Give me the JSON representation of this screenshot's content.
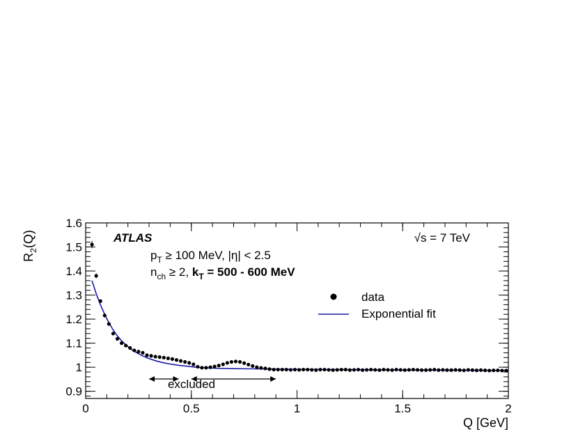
{
  "chart_data": {
    "type": "scatter",
    "xlabel": "Q [GeV]",
    "ylabel": "R",
    "ylabel_sub": "2",
    "ylabel_tail": "(Q)",
    "xlim": [
      0,
      2
    ],
    "ylim": [
      0.87,
      1.6
    ],
    "xticks": [
      0,
      0.5,
      1,
      1.5,
      2
    ],
    "xtick_labels": [
      "0",
      "0.5",
      "1",
      "1.5",
      "2"
    ],
    "yticks": [
      0.9,
      1,
      1.1,
      1.2,
      1.3,
      1.4,
      1.5,
      1.6
    ],
    "ytick_labels": [
      "0.9",
      "1",
      "1.1",
      "1.2",
      "1.3",
      "1.4",
      "1.5",
      "1.6"
    ],
    "grid": false,
    "legend_position": "right",
    "annotations": {
      "experiment": "ATLAS",
      "energy": "√s = 7 TeV",
      "line1_a": "p",
      "line1_sub": "T",
      "line1_b": " ≥ 100 MeV, |η| < 2.5",
      "line2_a": "n",
      "line2_sub": "ch",
      "line2_b": " ≥ 2, ",
      "line2_bold_a": "k",
      "line2_bold_sub": "T",
      "line2_bold_b": "  = 500 - 600 MeV",
      "excluded_label": "excluded",
      "excluded_range": [
        0.3,
        0.9
      ]
    },
    "series": [
      {
        "name": "data",
        "style": "markers",
        "color": "#000000",
        "x": [
          0.03,
          0.05,
          0.07,
          0.09,
          0.11,
          0.13,
          0.15,
          0.17,
          0.19,
          0.21,
          0.23,
          0.25,
          0.27,
          0.29,
          0.31,
          0.33,
          0.35,
          0.37,
          0.39,
          0.41,
          0.43,
          0.45,
          0.47,
          0.49,
          0.51,
          0.53,
          0.55,
          0.57,
          0.59,
          0.61,
          0.63,
          0.65,
          0.67,
          0.69,
          0.71,
          0.73,
          0.75,
          0.77,
          0.79,
          0.81,
          0.83,
          0.85,
          0.87,
          0.89,
          0.91,
          0.93,
          0.95,
          0.97,
          0.99,
          1.01,
          1.03,
          1.05,
          1.07,
          1.09,
          1.11,
          1.13,
          1.15,
          1.17,
          1.19,
          1.21,
          1.23,
          1.25,
          1.27,
          1.29,
          1.31,
          1.33,
          1.35,
          1.37,
          1.39,
          1.41,
          1.43,
          1.45,
          1.47,
          1.49,
          1.51,
          1.53,
          1.55,
          1.57,
          1.59,
          1.61,
          1.63,
          1.65,
          1.67,
          1.69,
          1.71,
          1.73,
          1.75,
          1.77,
          1.79,
          1.81,
          1.83,
          1.85,
          1.87,
          1.89,
          1.91,
          1.93,
          1.95,
          1.97,
          1.99
        ],
        "y": [
          1.51,
          1.38,
          1.275,
          1.215,
          1.18,
          1.14,
          1.118,
          1.1,
          1.09,
          1.08,
          1.07,
          1.065,
          1.06,
          1.05,
          1.047,
          1.044,
          1.042,
          1.04,
          1.037,
          1.034,
          1.03,
          1.026,
          1.022,
          1.018,
          1.012,
          1.002,
          0.998,
          0.998,
          1.0,
          1.003,
          1.007,
          1.012,
          1.018,
          1.022,
          1.024,
          1.022,
          1.017,
          1.011,
          1.005,
          1.0,
          0.997,
          0.995,
          0.992,
          0.99,
          0.99,
          0.99,
          0.99,
          0.989,
          0.99,
          0.989,
          0.99,
          0.99,
          0.989,
          0.988,
          0.99,
          0.99,
          0.989,
          0.988,
          0.989,
          0.99,
          0.99,
          0.988,
          0.989,
          0.99,
          0.988,
          0.989,
          0.99,
          0.989,
          0.988,
          0.99,
          0.989,
          0.988,
          0.99,
          0.989,
          0.988,
          0.989,
          0.99,
          0.989,
          0.988,
          0.988,
          0.989,
          0.99,
          0.988,
          0.989,
          0.988,
          0.988,
          0.989,
          0.988,
          0.987,
          0.989,
          0.988,
          0.987,
          0.988,
          0.987,
          0.986,
          0.987,
          0.987,
          0.986,
          0.986
        ],
        "yerr": [
          0.015,
          0.01,
          0.008,
          0.006,
          0.005,
          0.004,
          0.004,
          0.003,
          0.003,
          0.003,
          0.003,
          0.003,
          0.003,
          0.003,
          0.003,
          0.003,
          0.003,
          0.003,
          0.003,
          0.003,
          0.003,
          0.003,
          0.003,
          0.003,
          0.003,
          0.003,
          0.003,
          0.003,
          0.003,
          0.003,
          0.003,
          0.003,
          0.003,
          0.003,
          0.003,
          0.003,
          0.003,
          0.003,
          0.003,
          0.003,
          0.003,
          0.003,
          0.003,
          0.003,
          0.003,
          0.003,
          0.003,
          0.003,
          0.003,
          0.003,
          0.003,
          0.003,
          0.003,
          0.003,
          0.003,
          0.003,
          0.003,
          0.003,
          0.003,
          0.003,
          0.003,
          0.003,
          0.003,
          0.003,
          0.003,
          0.003,
          0.003,
          0.003,
          0.003,
          0.003,
          0.003,
          0.003,
          0.003,
          0.003,
          0.003,
          0.003,
          0.003,
          0.003,
          0.003,
          0.003,
          0.003,
          0.003,
          0.003,
          0.003,
          0.003,
          0.003,
          0.003,
          0.003,
          0.003,
          0.003,
          0.003,
          0.003,
          0.003,
          0.003,
          0.003,
          0.003,
          0.003,
          0.003,
          0.003
        ]
      },
      {
        "name": "Exponential fit",
        "style": "line",
        "color": "#1a1aa8",
        "x": [
          0.03,
          0.05,
          0.07,
          0.09,
          0.11,
          0.13,
          0.15,
          0.17,
          0.19,
          0.21,
          0.23,
          0.25,
          0.27,
          0.3,
          0.33,
          0.36,
          0.4,
          0.44,
          0.48,
          0.52,
          0.56,
          0.6,
          0.7,
          0.8,
          0.9,
          1.0,
          1.2,
          1.4,
          1.6,
          1.8,
          2.0
        ],
        "y": [
          1.36,
          1.305,
          1.26,
          1.22,
          1.185,
          1.155,
          1.13,
          1.11,
          1.093,
          1.078,
          1.066,
          1.056,
          1.047,
          1.036,
          1.027,
          1.02,
          1.013,
          1.008,
          1.004,
          1.0,
          0.998,
          0.996,
          0.994,
          0.993,
          0.992,
          0.991,
          0.99,
          0.989,
          0.988,
          0.987,
          0.986
        ]
      }
    ]
  }
}
